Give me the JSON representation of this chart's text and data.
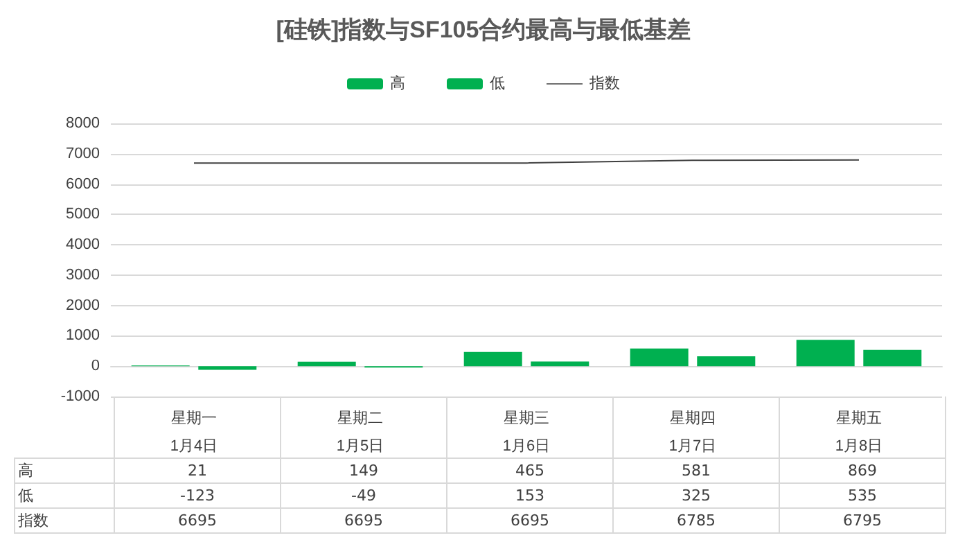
{
  "chart_data": {
    "type": "bar",
    "title": "[硅铁]指数与SF105合约最高与最低基差",
    "categories": [
      "星期一\n1月4日",
      "星期二\n1月5日",
      "星期三\n1月6日",
      "星期四\n1月7日",
      "星期五\n1月8日"
    ],
    "series": [
      {
        "name": "高",
        "color": "#00b050",
        "values": [
          21,
          149,
          465,
          581,
          869
        ]
      },
      {
        "name": "低",
        "color": "#00b050",
        "values": [
          -123,
          -49,
          153,
          325,
          535
        ]
      },
      {
        "name": "指数",
        "type": "line",
        "color": "#404040",
        "values": [
          6695,
          6695,
          6695,
          6785,
          6795
        ]
      }
    ],
    "ylim": [
      -1000,
      8000
    ],
    "yticks": [
      -1000,
      0,
      1000,
      2000,
      3000,
      4000,
      5000,
      6000,
      7000,
      8000
    ],
    "grid": "y",
    "legend": "top",
    "data_labels": true,
    "marker": "none"
  }
}
